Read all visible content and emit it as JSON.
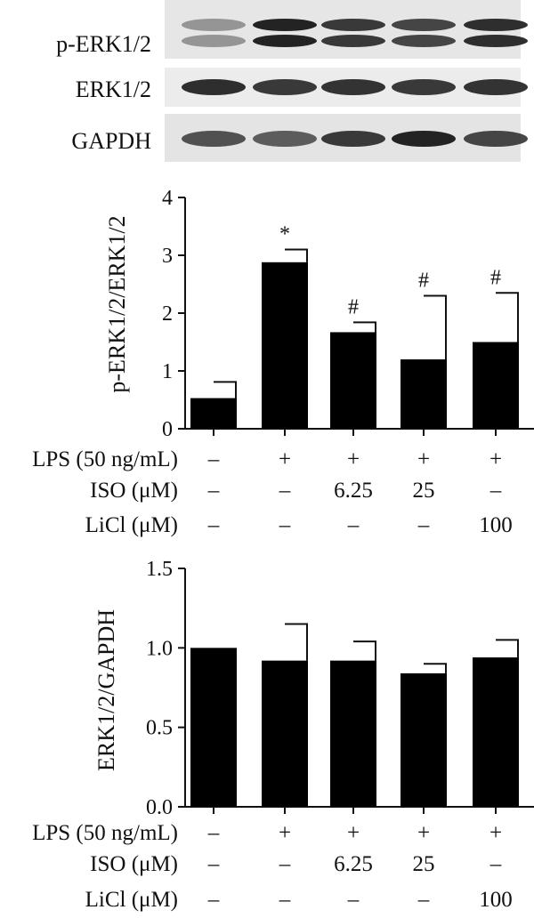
{
  "blot": {
    "labels": [
      "p-ERK1/2",
      "ERK1/2",
      "GAPDH"
    ],
    "band_intensity": [
      [
        0.45,
        0.95,
        0.85,
        0.8,
        0.9
      ],
      [
        0.9,
        0.85,
        0.88,
        0.85,
        0.88
      ],
      [
        0.75,
        0.7,
        0.85,
        0.95,
        0.8
      ]
    ]
  },
  "conditions": {
    "row_labels": [
      "LPS (50 ng/mL)",
      "ISO (μM)",
      "LiCl (μM)"
    ],
    "rows": [
      [
        "–",
        "+",
        "+",
        "+",
        "+"
      ],
      [
        "–",
        "–",
        "6.25",
        "25",
        "–"
      ],
      [
        "–",
        "–",
        "–",
        "–",
        "100"
      ]
    ]
  },
  "chart_data": [
    {
      "type": "bar",
      "ylabel": "p-ERK1/2/ERK1/2",
      "ylim": [
        0,
        4
      ],
      "yticks": [
        "0",
        "1",
        "2",
        "3",
        "4"
      ],
      "values": [
        0.53,
        2.88,
        1.67,
        1.2,
        1.5
      ],
      "errors": [
        0.28,
        0.22,
        0.17,
        1.1,
        0.85
      ],
      "annotations": [
        "",
        "*",
        "#",
        "#",
        "#"
      ],
      "bar_color": "#000000"
    },
    {
      "type": "bar",
      "ylabel": "ERK1/2/GAPDH",
      "ylim": [
        0,
        1.5
      ],
      "yticks": [
        "0.0",
        "0.5",
        "1.0",
        "1.5"
      ],
      "values": [
        1.0,
        0.92,
        0.92,
        0.84,
        0.94
      ],
      "errors": [
        0,
        0.23,
        0.12,
        0.06,
        0.11
      ],
      "annotations": [
        "",
        "",
        "",
        "",
        ""
      ],
      "bar_color": "#000000"
    }
  ]
}
